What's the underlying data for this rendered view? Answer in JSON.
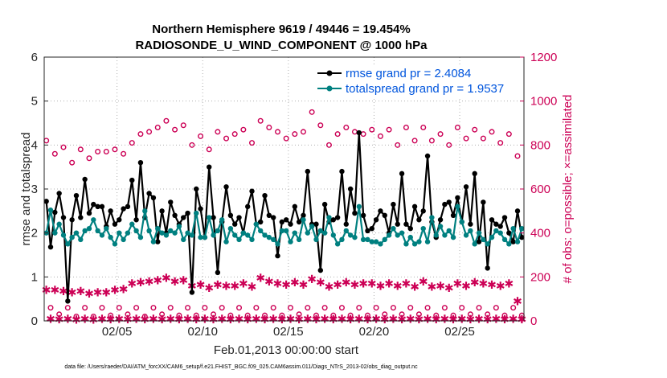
{
  "chart_data": {
    "type": "line",
    "title": "Northern Hemisphere 9619 / 49446 = 19.454%",
    "subtitle": "RADIOSONDE_U_WIND_COMPONENT @ 1000 hPa",
    "xlabel": "Feb.01,2013 00:00:00 start",
    "ylabel_left": "rmse and totalspread",
    "ylabel_right": "# of obs: o=possible; ×=assimilated",
    "x_ticks": [
      "02/05",
      "02/10",
      "02/15",
      "02/20",
      "02/25"
    ],
    "x_tick_days": [
      5,
      10,
      15,
      20,
      25
    ],
    "xlim": [
      0.75,
      28.75
    ],
    "ylim_left": [
      0,
      6
    ],
    "y_ticks_left": [
      "0",
      "1",
      "2",
      "3",
      "4",
      "5",
      "6"
    ],
    "ylim_right": [
      0,
      1200
    ],
    "y_ticks_right": [
      "0",
      "200",
      "400",
      "600",
      "800",
      "1000",
      "1200"
    ],
    "grid": true,
    "legend_position": "top-right",
    "colors": {
      "rmse": "#000000",
      "spread": "#008080",
      "obs": "#cc0055",
      "right_axis": "#cc0055",
      "legend_text": "#0055dd"
    },
    "series": [
      {
        "name": "rmse grand pr = 2.4084",
        "axis": "left",
        "x": [
          0.875,
          1.125,
          1.375,
          1.625,
          1.875,
          2.125,
          2.375,
          2.625,
          2.875,
          3.125,
          3.375,
          3.625,
          3.875,
          4.125,
          4.375,
          4.625,
          4.875,
          5.125,
          5.375,
          5.625,
          5.875,
          6.125,
          6.375,
          6.625,
          6.875,
          7.125,
          7.375,
          7.625,
          7.875,
          8.125,
          8.375,
          8.625,
          8.875,
          9.125,
          9.375,
          9.625,
          9.875,
          10.125,
          10.375,
          10.625,
          10.875,
          11.125,
          11.375,
          11.625,
          11.875,
          12.125,
          12.375,
          12.625,
          12.875,
          13.125,
          13.375,
          13.625,
          13.875,
          14.125,
          14.375,
          14.625,
          14.875,
          15.125,
          15.375,
          15.625,
          15.875,
          16.125,
          16.375,
          16.625,
          16.875,
          17.125,
          17.375,
          17.625,
          17.875,
          18.125,
          18.375,
          18.625,
          18.875,
          19.125,
          19.375,
          19.625,
          19.875,
          20.125,
          20.375,
          20.625,
          20.875,
          21.125,
          21.375,
          21.625,
          21.875,
          22.125,
          22.375,
          22.625,
          22.875,
          23.125,
          23.375,
          23.625,
          23.875,
          24.125,
          24.375,
          24.625,
          24.875,
          25.125,
          25.375,
          25.625,
          25.875,
          26.125,
          26.375,
          26.625,
          26.875,
          27.125,
          27.375,
          27.625,
          27.875,
          28.125,
          28.375,
          28.625
        ],
        "values": [
          2.72,
          1.68,
          2.47,
          2.9,
          2.35,
          0.45,
          2.3,
          2.85,
          2.35,
          3.22,
          2.45,
          2.65,
          2.6,
          2.6,
          2.15,
          2.5,
          2.2,
          2.3,
          2.55,
          2.6,
          3.2,
          2.3,
          3.6,
          2.35,
          2.9,
          2.8,
          1.8,
          2.5,
          2.0,
          2.7,
          2.4,
          2.2,
          2.35,
          2.45,
          0.65,
          3.0,
          2.55,
          1.9,
          3.5,
          2.35,
          1.1,
          2.25,
          3.05,
          2.4,
          2.2,
          2.35,
          2.0,
          2.6,
          2.95,
          2.2,
          2.25,
          2.85,
          2.4,
          2.35,
          1.48,
          2.25,
          2.3,
          2.2,
          2.6,
          2.25,
          2.4,
          3.4,
          2.2,
          2.2,
          1.15,
          2.65,
          2.25,
          2.3,
          2.35,
          3.4,
          2.2,
          3.0,
          2.45,
          4.28,
          2.4,
          2.05,
          2.1,
          2.3,
          2.5,
          2.4,
          2.0,
          2.65,
          2.2,
          3.35,
          2.2,
          2.1,
          2.6,
          2.3,
          2.5,
          3.75,
          2.25,
          1.9,
          2.3,
          2.65,
          2.7,
          2.4,
          2.8,
          2.25,
          3.05,
          2.2,
          3.35,
          1.8,
          2.7,
          1.2,
          2.3,
          2.2,
          2.15,
          2.35,
          2.0,
          1.8,
          2.5,
          1.9
        ],
        "color": "#000000"
      },
      {
        "name": "totalspread grand pr = 1.9537",
        "axis": "left",
        "x": [
          0.875,
          1.125,
          1.375,
          1.625,
          1.875,
          2.125,
          2.375,
          2.625,
          2.875,
          3.125,
          3.375,
          3.625,
          3.875,
          4.125,
          4.375,
          4.625,
          4.875,
          5.125,
          5.375,
          5.625,
          5.875,
          6.125,
          6.375,
          6.625,
          6.875,
          7.125,
          7.375,
          7.625,
          7.875,
          8.125,
          8.375,
          8.625,
          8.875,
          9.125,
          9.375,
          9.625,
          9.875,
          10.125,
          10.375,
          10.625,
          10.875,
          11.125,
          11.375,
          11.625,
          11.875,
          12.125,
          12.375,
          12.625,
          12.875,
          13.125,
          13.375,
          13.625,
          13.875,
          14.125,
          14.375,
          14.625,
          14.875,
          15.125,
          15.375,
          15.625,
          15.875,
          16.125,
          16.375,
          16.625,
          16.875,
          17.125,
          17.375,
          17.625,
          17.875,
          18.125,
          18.375,
          18.625,
          18.875,
          19.125,
          19.375,
          19.625,
          19.875,
          20.125,
          20.375,
          20.625,
          20.875,
          21.125,
          21.375,
          21.625,
          21.875,
          22.125,
          22.375,
          22.625,
          22.875,
          23.125,
          23.375,
          23.625,
          23.875,
          24.125,
          24.375,
          24.625,
          24.875,
          25.125,
          25.375,
          25.625,
          25.875,
          26.125,
          26.375,
          26.625,
          26.875,
          27.125,
          27.375,
          27.625,
          27.875,
          28.125,
          28.375,
          28.625
        ],
        "values": [
          2.0,
          2.52,
          2.0,
          2.2,
          1.95,
          1.75,
          1.9,
          2.0,
          1.85,
          2.05,
          2.1,
          2.3,
          2.05,
          1.95,
          2.1,
          1.9,
          1.75,
          2.0,
          1.85,
          2.0,
          2.2,
          2.05,
          1.9,
          2.5,
          2.05,
          1.8,
          2.1,
          2.0,
          1.95,
          2.05,
          2.0,
          2.15,
          1.85,
          2.0,
          1.95,
          2.45,
          1.9,
          1.9,
          2.35,
          1.95,
          2.05,
          2.3,
          1.8,
          2.1,
          1.95,
          1.85,
          2.0,
          1.95,
          1.85,
          2.2,
          2.05,
          1.95,
          1.9,
          1.85,
          1.75,
          2.05,
          2.05,
          1.8,
          2.0,
          1.85,
          2.3,
          2.0,
          2.15,
          1.85,
          2.05,
          2.0,
          2.35,
          1.95,
          1.75,
          1.85,
          2.05,
          1.95,
          1.9,
          2.6,
          1.85,
          1.85,
          1.8,
          1.8,
          1.75,
          1.85,
          1.95,
          2.1,
          1.95,
          2.0,
          1.75,
          1.9,
          1.75,
          1.8,
          2.1,
          1.8,
          2.35,
          1.95,
          2.15,
          1.95,
          2.05,
          1.9,
          2.6,
          2.25,
          1.95,
          2.05,
          1.75,
          2.0,
          1.85,
          1.75,
          1.9,
          2.05,
          2.0,
          1.85,
          1.75,
          2.1,
          1.8,
          2.1
        ],
        "color": "#008080"
      },
      {
        "name": "possible",
        "axis": "right",
        "marker": "o",
        "x": [
          0.875,
          1.125,
          1.375,
          1.625,
          1.875,
          2.125,
          2.375,
          2.625,
          2.875,
          3.125,
          3.375,
          3.625,
          3.875,
          4.125,
          4.375,
          4.625,
          4.875,
          5.125,
          5.375,
          5.625,
          5.875,
          6.125,
          6.375,
          6.625,
          6.875,
          7.125,
          7.375,
          7.625,
          7.875,
          8.125,
          8.375,
          8.625,
          8.875,
          9.125,
          9.375,
          9.625,
          9.875,
          10.125,
          10.375,
          10.625,
          10.875,
          11.125,
          11.375,
          11.625,
          11.875,
          12.125,
          12.375,
          12.625,
          12.875,
          13.125,
          13.375,
          13.625,
          13.875,
          14.125,
          14.375,
          14.625,
          14.875,
          15.125,
          15.375,
          15.625,
          15.875,
          16.125,
          16.375,
          16.625,
          16.875,
          17.125,
          17.375,
          17.625,
          17.875,
          18.125,
          18.375,
          18.625,
          18.875,
          19.125,
          19.375,
          19.625,
          19.875,
          20.125,
          20.375,
          20.625,
          20.875,
          21.125,
          21.375,
          21.625,
          21.875,
          22.125,
          22.375,
          22.625,
          22.875,
          23.125,
          23.375,
          23.625,
          23.875,
          24.125,
          24.375,
          24.625,
          24.875,
          25.125,
          25.375,
          25.625,
          25.875,
          26.125,
          26.375,
          26.625,
          26.875,
          27.125,
          27.375,
          27.625,
          27.875,
          28.125,
          28.375,
          28.625
        ],
        "values": [
          820,
          60,
          760,
          30,
          790,
          60,
          720,
          20,
          780,
          60,
          740,
          20,
          770,
          60,
          770,
          25,
          780,
          60,
          760,
          30,
          810,
          60,
          850,
          20,
          860,
          60,
          880,
          30,
          910,
          60,
          870,
          25,
          890,
          60,
          800,
          25,
          840,
          60,
          780,
          30,
          860,
          60,
          830,
          25,
          850,
          60,
          870,
          25,
          810,
          60,
          910,
          25,
          880,
          60,
          860,
          25,
          830,
          60,
          850,
          30,
          860,
          60,
          950,
          25,
          890,
          60,
          800,
          25,
          850,
          60,
          880,
          25,
          860,
          60,
          850,
          25,
          870,
          60,
          840,
          30,
          870,
          60,
          800,
          30,
          880,
          60,
          820,
          30,
          880,
          60,
          820,
          25,
          850,
          60,
          800,
          25,
          880,
          60,
          830,
          30,
          870,
          60,
          830,
          30,
          860,
          60,
          810,
          25,
          850,
          60,
          750,
          25
        ]
      },
      {
        "name": "assimilated",
        "axis": "right",
        "marker": "*",
        "x": [
          0.875,
          1.125,
          1.375,
          1.625,
          1.875,
          2.125,
          2.375,
          2.625,
          2.875,
          3.125,
          3.375,
          3.625,
          3.875,
          4.125,
          4.375,
          4.625,
          4.875,
          5.125,
          5.375,
          5.625,
          5.875,
          6.125,
          6.375,
          6.625,
          6.875,
          7.125,
          7.375,
          7.625,
          7.875,
          8.125,
          8.375,
          8.625,
          8.875,
          9.125,
          9.375,
          9.625,
          9.875,
          10.125,
          10.375,
          10.625,
          10.875,
          11.125,
          11.375,
          11.625,
          11.875,
          12.125,
          12.375,
          12.625,
          12.875,
          13.125,
          13.375,
          13.625,
          13.875,
          14.125,
          14.375,
          14.625,
          14.875,
          15.125,
          15.375,
          15.625,
          15.875,
          16.125,
          16.375,
          16.625,
          16.875,
          17.125,
          17.375,
          17.625,
          17.875,
          18.125,
          18.375,
          18.625,
          18.875,
          19.125,
          19.375,
          19.625,
          19.875,
          20.125,
          20.375,
          20.625,
          20.875,
          21.125,
          21.375,
          21.625,
          21.875,
          22.125,
          22.375,
          22.625,
          22.875,
          23.125,
          23.375,
          23.625,
          23.875,
          24.125,
          24.375,
          24.625,
          24.875,
          25.125,
          25.375,
          25.625,
          25.875,
          26.125,
          26.375,
          26.625,
          26.875,
          27.125,
          27.375,
          27.625,
          27.875,
          28.125,
          28.375,
          28.625
        ],
        "values": [
          140,
          10,
          140,
          8,
          135,
          10,
          130,
          6,
          135,
          10,
          125,
          6,
          130,
          10,
          130,
          8,
          140,
          10,
          145,
          8,
          170,
          10,
          175,
          8,
          180,
          10,
          185,
          8,
          195,
          10,
          180,
          8,
          185,
          10,
          160,
          8,
          165,
          10,
          150,
          8,
          165,
          10,
          160,
          8,
          160,
          10,
          170,
          8,
          155,
          10,
          195,
          8,
          180,
          10,
          170,
          8,
          165,
          10,
          175,
          8,
          165,
          10,
          190,
          8,
          175,
          10,
          155,
          8,
          165,
          10,
          175,
          8,
          165,
          10,
          170,
          8,
          170,
          10,
          160,
          8,
          170,
          10,
          160,
          8,
          170,
          10,
          155,
          8,
          180,
          10,
          155,
          8,
          160,
          10,
          150,
          8,
          170,
          10,
          160,
          8,
          175,
          10,
          170,
          8,
          165,
          10,
          160,
          8,
          170,
          10,
          90,
          8
        ]
      }
    ],
    "footer": "data file: /Users/raeder/DAI/ATM_forcXX/CAM6_setup/f.e21.FHIST_BGC.f09_025.CAM6assim.011/Diags_NTrS_2013-02/obs_diag_output.nc"
  }
}
